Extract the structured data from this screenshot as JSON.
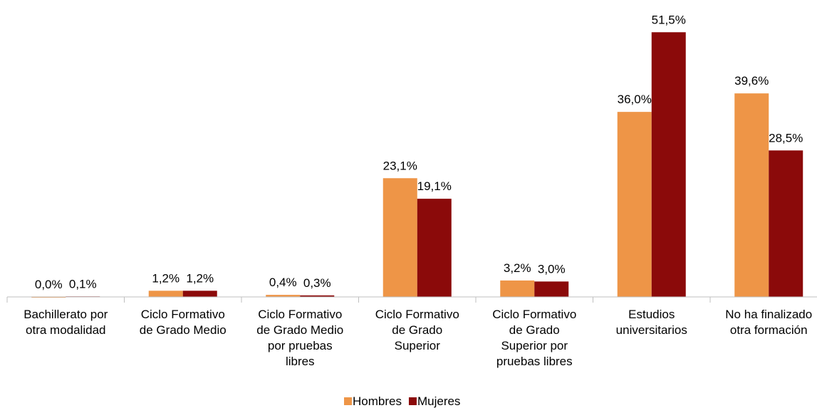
{
  "chart_data": {
    "type": "bar",
    "categories": [
      "Bachillerato por\notra modalidad",
      "Ciclo Formativo\nde Grado Medio",
      "Ciclo Formativo\nde Grado Medio\npor pruebas\nlibres",
      "Ciclo Formativo\nde Grado\nSuperior",
      "Ciclo Formativo\nde Grado\nSuperior por\npruebas libres",
      "Estudios\nuniversitarios",
      "No ha finalizado\notra formación"
    ],
    "series": [
      {
        "name": "Hombres",
        "color": "#ee9547",
        "values": [
          0.0,
          1.2,
          0.4,
          23.1,
          3.2,
          36.0,
          39.6
        ],
        "value_labels": [
          "0,0%",
          "1,2%",
          "0,4%",
          "23,1%",
          "3,2%",
          "36,0%",
          "39,6%"
        ]
      },
      {
        "name": "Mujeres",
        "color": "#8b0a0a",
        "values": [
          0.1,
          1.2,
          0.3,
          19.1,
          3.0,
          51.5,
          28.5
        ],
        "value_labels": [
          "0,1%",
          "1,2%",
          "0,3%",
          "19,1%",
          "3,0%",
          "51,5%",
          "28,5%"
        ]
      }
    ],
    "ylim": [
      0,
      55
    ],
    "legend": "bottom"
  }
}
